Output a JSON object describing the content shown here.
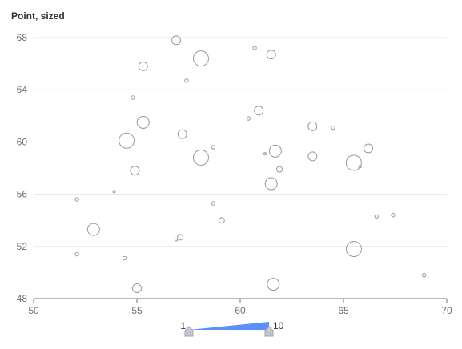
{
  "chart_data": {
    "type": "scatter",
    "title": "Point, sized",
    "xlabel": "",
    "ylabel": "",
    "xlim": [
      50,
      70
    ],
    "ylim": [
      48,
      68
    ],
    "x_ticks": [
      "50",
      "55",
      "60",
      "65",
      "70"
    ],
    "y_ticks": [
      "48",
      "52",
      "56",
      "60",
      "64",
      "68"
    ],
    "grid": "horizontal",
    "visual_map": {
      "min_label": "1",
      "max_label": "10",
      "color": "#5b8ff9"
    },
    "points": [
      {
        "x": 56.9,
        "y": 67.8,
        "size": 4
      },
      {
        "x": 58.1,
        "y": 66.4,
        "size": 6
      },
      {
        "x": 60.7,
        "y": 67.2,
        "size": 2
      },
      {
        "x": 61.5,
        "y": 66.7,
        "size": 4
      },
      {
        "x": 55.3,
        "y": 65.8,
        "size": 4
      },
      {
        "x": 57.4,
        "y": 64.7,
        "size": 2
      },
      {
        "x": 54.8,
        "y": 63.4,
        "size": 2
      },
      {
        "x": 60.9,
        "y": 62.4,
        "size": 4
      },
      {
        "x": 60.4,
        "y": 61.8,
        "size": 2
      },
      {
        "x": 55.3,
        "y": 61.5,
        "size": 5
      },
      {
        "x": 63.5,
        "y": 61.2,
        "size": 4
      },
      {
        "x": 64.5,
        "y": 61.1,
        "size": 2
      },
      {
        "x": 57.2,
        "y": 60.6,
        "size": 4
      },
      {
        "x": 54.5,
        "y": 60.1,
        "size": 6
      },
      {
        "x": 58.7,
        "y": 59.6,
        "size": 2
      },
      {
        "x": 66.2,
        "y": 59.5,
        "size": 4
      },
      {
        "x": 61.7,
        "y": 59.3,
        "size": 5
      },
      {
        "x": 61.2,
        "y": 59.1,
        "size": 1
      },
      {
        "x": 63.5,
        "y": 58.9,
        "size": 4
      },
      {
        "x": 58.1,
        "y": 58.8,
        "size": 6
      },
      {
        "x": 65.5,
        "y": 58.4,
        "size": 6
      },
      {
        "x": 65.8,
        "y": 58.1,
        "size": 1
      },
      {
        "x": 54.9,
        "y": 57.8,
        "size": 4
      },
      {
        "x": 61.9,
        "y": 57.9,
        "size": 3
      },
      {
        "x": 61.5,
        "y": 56.8,
        "size": 5
      },
      {
        "x": 53.9,
        "y": 56.2,
        "size": 1
      },
      {
        "x": 52.1,
        "y": 55.6,
        "size": 2
      },
      {
        "x": 58.7,
        "y": 55.3,
        "size": 2
      },
      {
        "x": 66.6,
        "y": 54.3,
        "size": 2
      },
      {
        "x": 67.4,
        "y": 54.4,
        "size": 2
      },
      {
        "x": 59.1,
        "y": 54.0,
        "size": 3
      },
      {
        "x": 52.9,
        "y": 53.3,
        "size": 5
      },
      {
        "x": 57.1,
        "y": 52.7,
        "size": 3
      },
      {
        "x": 56.9,
        "y": 52.5,
        "size": 1
      },
      {
        "x": 65.5,
        "y": 51.8,
        "size": 6
      },
      {
        "x": 52.1,
        "y": 51.4,
        "size": 2
      },
      {
        "x": 54.4,
        "y": 51.1,
        "size": 2
      },
      {
        "x": 68.9,
        "y": 49.8,
        "size": 2
      },
      {
        "x": 61.6,
        "y": 49.1,
        "size": 5
      },
      {
        "x": 55.0,
        "y": 48.8,
        "size": 4
      }
    ]
  }
}
